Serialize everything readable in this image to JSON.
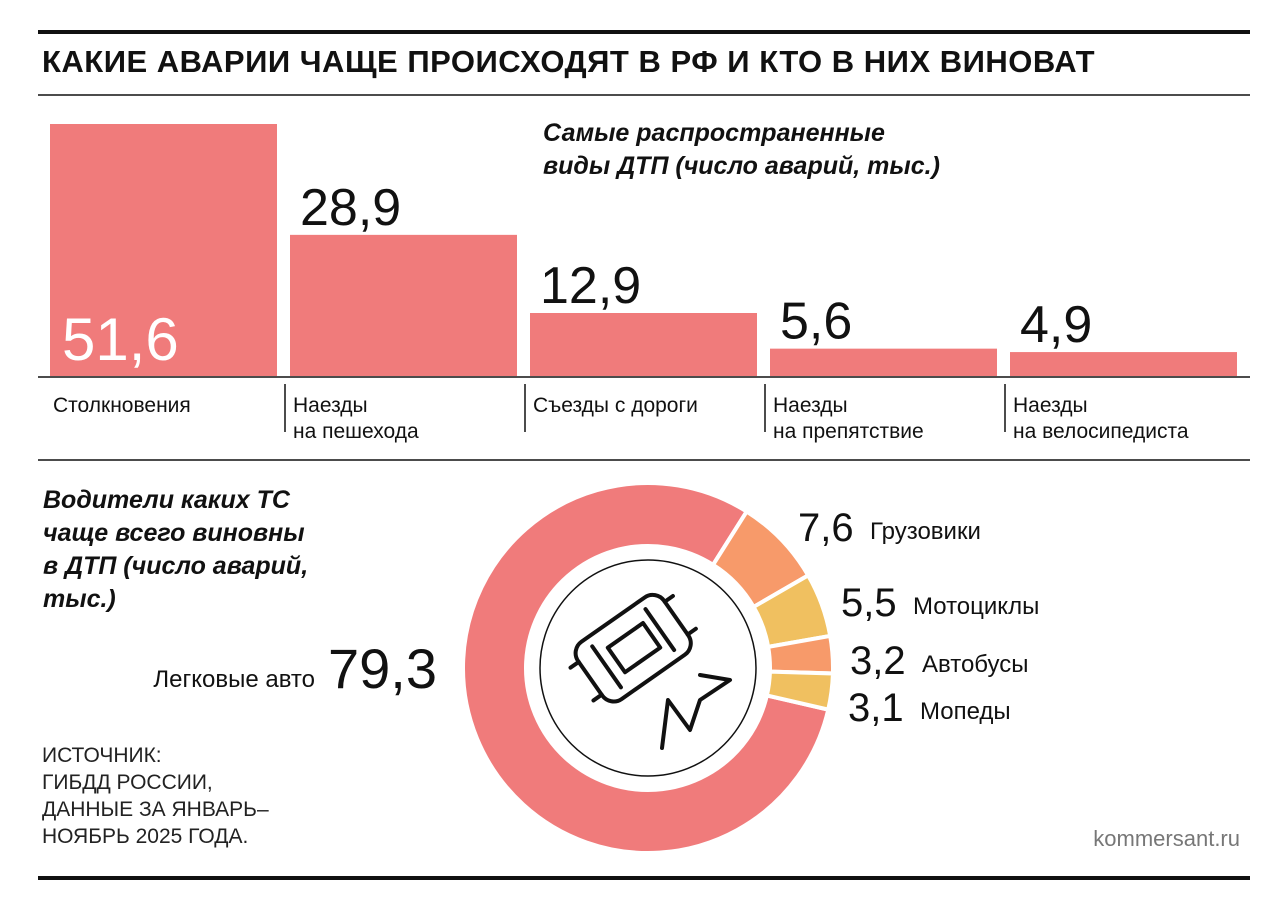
{
  "title": "КАКИЕ АВАРИИ ЧАЩЕ ПРОИСХОДЯТ В РФ И КТО В НИХ ВИНОВАТ",
  "chart_data": [
    {
      "type": "bar",
      "title": "Самые распространенные\nвиды ДТП (число аварий, тыс.)",
      "categories": [
        "Столкновения",
        "Наезды\nна пешехода",
        "Съезды с дороги",
        "Наезды\nна препятствие",
        "Наезды\nна велосипедиста"
      ],
      "values": [
        51.6,
        28.9,
        12.9,
        5.6,
        4.9
      ],
      "value_labels": [
        "51,6",
        "28,9",
        "12,9",
        "5,6",
        "4,9"
      ],
      "color": "#f07b7b"
    },
    {
      "type": "donut",
      "title": "Водители каких ТС\nчаще всего виновны\nв ДТП (число аварий,\nтыс.)",
      "categories": [
        "Легковые авто",
        "Грузовики",
        "Мотоциклы",
        "Автобусы",
        "Мопеды"
      ],
      "values": [
        79.3,
        7.6,
        5.5,
        3.2,
        3.1
      ],
      "value_labels": [
        "79,3",
        "7,6",
        "5,5",
        "3,2",
        "3,1"
      ],
      "colors": [
        "#f07b7b",
        "#f79a6a",
        "#f0c060",
        "#f79a6a",
        "#f0c060"
      ]
    }
  ],
  "source": "ИСТОЧНИК:\nГИБДД РОССИИ,\nДАННЫЕ ЗА ЯНВАРЬ–\nНОЯБРЬ 2025 ГОДА.",
  "credit": "kommersant.ru"
}
